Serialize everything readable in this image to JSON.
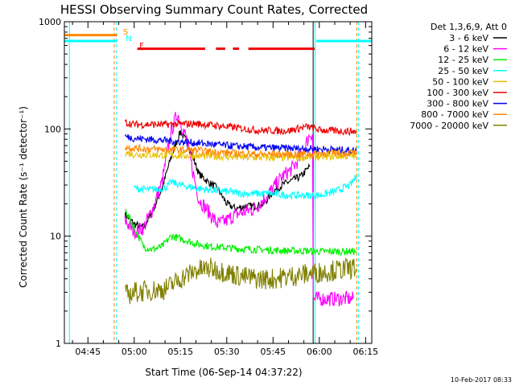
{
  "chart_data": {
    "type": "line",
    "title": "HESSI Observing Summary Count Rates, Corrected",
    "xlabel": "Start Time (06-Sep-14 04:37:22)",
    "ylabel": "Corrected Count Rate (s⁻¹ detector⁻¹)",
    "ylim": [
      1,
      1000
    ],
    "y_scale": "log",
    "xlim": [
      "04:37:22",
      "06:17:00"
    ],
    "x_ticks": [
      "04:45",
      "05:00",
      "05:15",
      "05:30",
      "05:45",
      "06:00",
      "06:15"
    ],
    "y_ticks": [
      "1",
      "10",
      "100",
      "1000"
    ],
    "legend": {
      "header": "Det 1,3,6,9, Att 0",
      "placement": "right",
      "entries": [
        {
          "label": "3 - 6 keV",
          "color": "#000000"
        },
        {
          "label": "6 - 12 keV",
          "color": "#ff00ff"
        },
        {
          "label": "12 - 25 keV",
          "color": "#00ee00"
        },
        {
          "label": "25 - 50 keV",
          "color": "#00ffff"
        },
        {
          "label": "50 - 100 keV",
          "color": "#e8c000"
        },
        {
          "label": "100 - 300 keV",
          "color": "#ee0000"
        },
        {
          "label": "300 - 800 keV",
          "color": "#0000ee"
        },
        {
          "label": "800 - 7000 keV",
          "color": "#ff8800"
        },
        {
          "label": "7000 - 20000 keV",
          "color": "#808000"
        }
      ]
    },
    "flags": [
      {
        "label": "S",
        "color": "#ff8800",
        "level": 750,
        "segments": [
          [
            "04:37:22",
            "04:54:30"
          ]
        ]
      },
      {
        "label": "N",
        "color": "#00ffff",
        "level": 660,
        "segments": [
          [
            "04:37:22",
            "04:54:30"
          ],
          [
            "05:59:00",
            "06:17:00"
          ]
        ]
      },
      {
        "label": "F",
        "color": "#ee0000",
        "level": 560,
        "segments": [
          [
            "05:01:00",
            "05:23:00"
          ],
          [
            "05:26:30",
            "05:29:30"
          ],
          [
            "05:32:00",
            "05:34:00"
          ],
          [
            "05:37:00",
            "05:58:30"
          ]
        ]
      }
    ],
    "markers": [
      {
        "time": "04:39:00",
        "color": "#00ffff",
        "style": "solid"
      },
      {
        "time": "04:53:30",
        "color": "#ff8800",
        "style": "dashed"
      },
      {
        "time": "04:54:10",
        "color": "#00ffff",
        "style": "dashed"
      },
      {
        "time": "05:58:00",
        "color": "#000000",
        "style": "solid"
      },
      {
        "time": "05:58:40",
        "color": "#00ffff",
        "style": "solid"
      },
      {
        "time": "06:12:10",
        "color": "#ff8800",
        "style": "dashed"
      },
      {
        "time": "06:12:40",
        "color": "#00ffff",
        "style": "dashed"
      }
    ],
    "series": [
      {
        "name": "3 - 6 keV",
        "color": "#000000",
        "x": [
          "04:57:00",
          "05:00:00",
          "05:03:00",
          "05:06:00",
          "05:09:00",
          "05:12:00",
          "05:15:00",
          "05:17:00",
          "05:19:00",
          "05:21:00",
          "05:24:00",
          "05:27:00",
          "05:30:00",
          "05:33:00",
          "05:36:00",
          "05:39:00",
          "05:42:00",
          "05:45:00",
          "05:48:00",
          "05:51:00",
          "05:54:00",
          "05:57:00"
        ],
        "y": [
          16,
          13,
          12,
          17,
          28,
          55,
          95,
          75,
          55,
          38,
          32,
          28,
          20,
          18,
          19,
          19,
          20,
          26,
          30,
          33,
          36,
          45
        ]
      },
      {
        "name": "6 - 12 keV",
        "color": "#ff00ff",
        "x": [
          "04:57:00",
          "05:00:00",
          "05:03:00",
          "05:06:00",
          "05:09:00",
          "05:12:00",
          "05:14:00",
          "05:17:00",
          "05:19:00",
          "05:21:00",
          "05:24:00",
          "05:27:00",
          "05:30:00",
          "05:33:00",
          "05:36:00",
          "05:39:00",
          "05:42:00",
          "05:45:00",
          "05:48:00",
          "05:51:00",
          "05:54:00",
          "05:57:00",
          "05:59:00",
          "06:03:00",
          "06:07:00",
          "06:11:00"
        ],
        "y": [
          14,
          11,
          12,
          18,
          32,
          95,
          140,
          80,
          40,
          22,
          17,
          13,
          14,
          16,
          17,
          18,
          22,
          28,
          36,
          42,
          55,
          90,
          2.6,
          2.6,
          2.6,
          2.6
        ]
      },
      {
        "name": "12 - 25 keV",
        "color": "#00ee00",
        "x": [
          "04:57:00",
          "05:00:00",
          "05:03:00",
          "05:06:00",
          "05:09:00",
          "05:12:00",
          "05:15:00",
          "05:20:00",
          "05:25:00",
          "05:30:00",
          "05:35:00",
          "05:40:00",
          "05:45:00",
          "05:50:00",
          "05:55:00",
          "06:00:00",
          "06:05:00",
          "06:10:00",
          "06:12:00"
        ],
        "y": [
          18,
          12,
          8,
          7.5,
          8,
          10,
          9.5,
          8.5,
          8,
          7.8,
          7.6,
          7.5,
          7.4,
          7.3,
          7.3,
          7.2,
          7.2,
          7.2,
          7.2
        ]
      },
      {
        "name": "25 - 50 keV",
        "color": "#00ffff",
        "x": [
          "05:00:00",
          "05:05:00",
          "05:10:00",
          "05:12:00",
          "05:15:00",
          "05:20:00",
          "05:25:00",
          "05:30:00",
          "05:35:00",
          "05:40:00",
          "05:45:00",
          "05:50:00",
          "05:55:00",
          "06:00:00",
          "06:05:00",
          "06:10:00",
          "06:12:00"
        ],
        "y": [
          28,
          27,
          28,
          32,
          30,
          28,
          27,
          26,
          25,
          25,
          25,
          24,
          24,
          24,
          26,
          30,
          36
        ]
      },
      {
        "name": "50 - 100 keV",
        "color": "#e8c000",
        "x": [
          "04:57:00",
          "05:00:00",
          "05:10:00",
          "05:20:00",
          "05:30:00",
          "05:40:00",
          "05:50:00",
          "06:00:00",
          "06:10:00",
          "06:12:00"
        ],
        "y": [
          60,
          58,
          57,
          56,
          55,
          54,
          54,
          55,
          56,
          56
        ]
      },
      {
        "name": "100 - 300 keV",
        "color": "#ee0000",
        "x": [
          "04:57:00",
          "05:00:00",
          "05:10:00",
          "05:20:00",
          "05:30:00",
          "05:40:00",
          "05:50:00",
          "05:56:00",
          "06:00:00",
          "06:05:00",
          "06:10:00",
          "06:12:00"
        ],
        "y": [
          115,
          110,
          110,
          112,
          105,
          97,
          96,
          105,
          98,
          96,
          95,
          95
        ]
      },
      {
        "name": "300 - 800 keV",
        "color": "#0000ee",
        "x": [
          "04:57:00",
          "05:00:00",
          "05:10:00",
          "05:20:00",
          "05:30:00",
          "05:40:00",
          "05:50:00",
          "06:00:00",
          "06:10:00",
          "06:12:00"
        ],
        "y": [
          85,
          82,
          78,
          74,
          70,
          67,
          66,
          65,
          63,
          62
        ]
      },
      {
        "name": "800 - 7000 keV",
        "color": "#ff8800",
        "x": [
          "04:57:00",
          "05:00:00",
          "05:10:00",
          "05:20:00",
          "05:30:00",
          "05:40:00",
          "05:50:00",
          "06:00:00",
          "06:10:00",
          "06:12:00"
        ],
        "y": [
          68,
          66,
          64,
          63,
          60,
          58,
          58,
          59,
          60,
          60
        ]
      },
      {
        "name": "7000 - 20000 keV",
        "color": "#808000",
        "x": [
          "04:57:00",
          "05:00:00",
          "05:05:00",
          "05:10:00",
          "05:15:00",
          "05:20:00",
          "05:25:00",
          "05:30:00",
          "05:35:00",
          "05:40:00",
          "05:45:00",
          "05:50:00",
          "05:55:00",
          "06:00:00",
          "06:05:00",
          "06:10:00",
          "06:12:00"
        ],
        "y": [
          2.8,
          3.0,
          3.1,
          3.2,
          4.0,
          4.8,
          5.0,
          4.6,
          4.2,
          4.0,
          4.0,
          4.2,
          4.4,
          4.6,
          4.8,
          5.0,
          5.0
        ]
      }
    ]
  },
  "footer": {
    "timestamp": "10-Feb-2017 08:33"
  }
}
